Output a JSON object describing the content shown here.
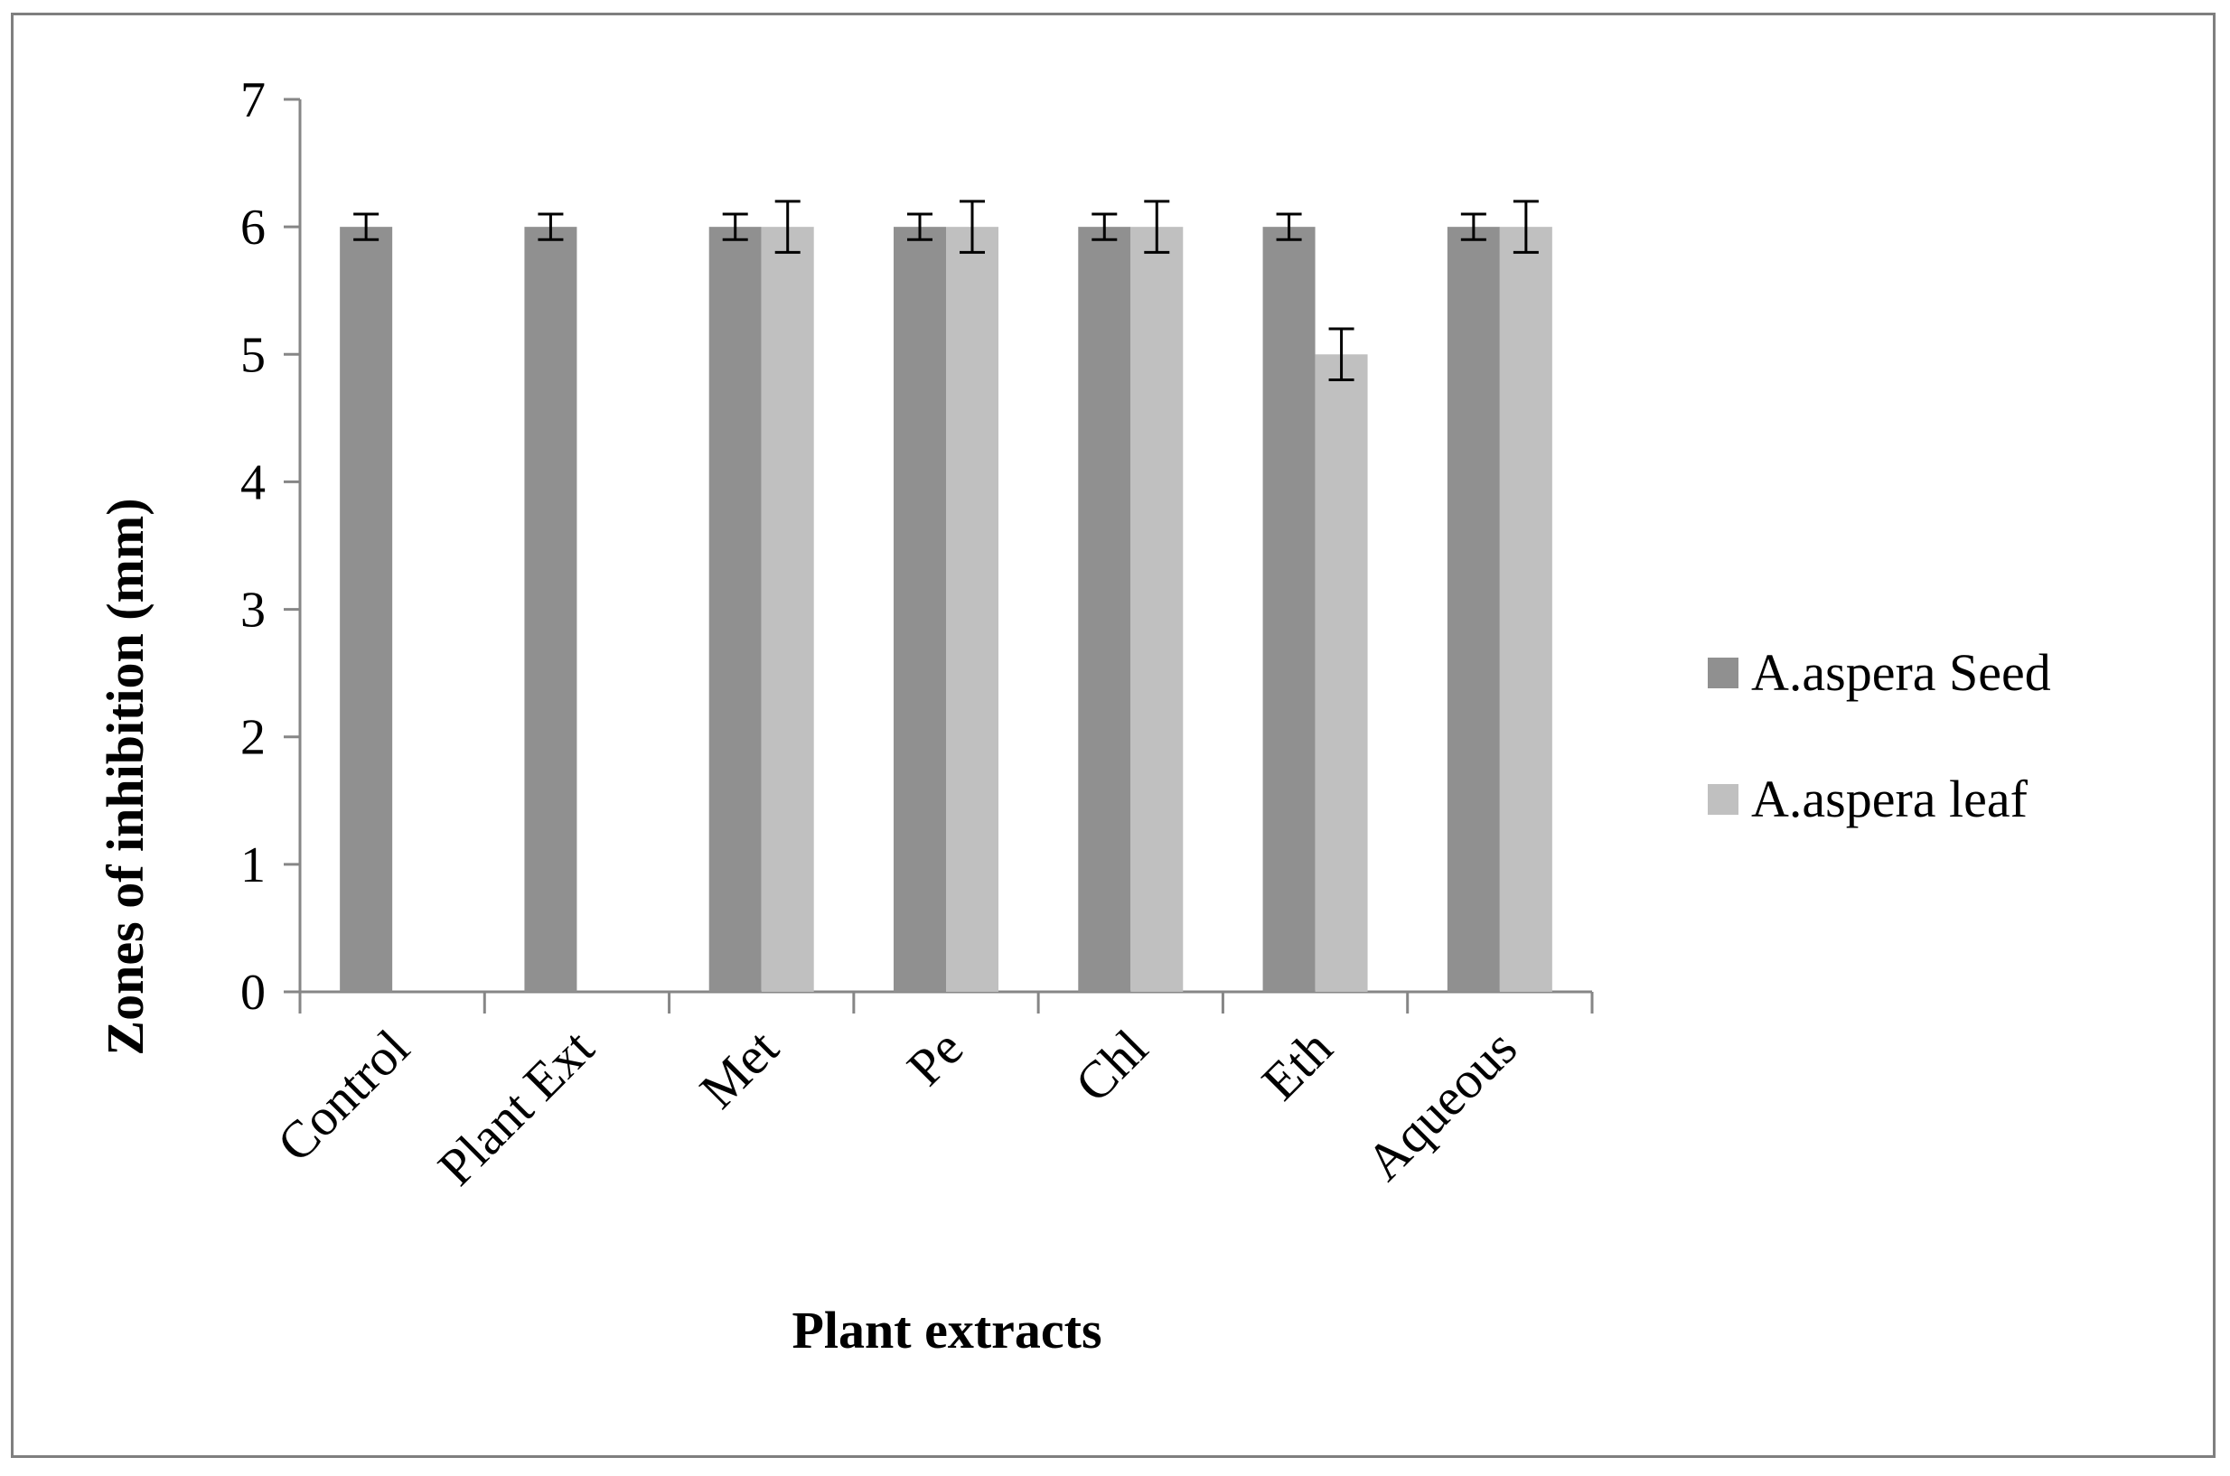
{
  "chart_data": {
    "type": "bar",
    "title": "",
    "xlabel": "Plant extracts",
    "ylabel": "Zones of inhibition (mm)",
    "ylim": [
      0,
      7
    ],
    "yticks": [
      "0",
      "1",
      "2",
      "3",
      "4",
      "5",
      "6",
      "7"
    ],
    "grid": false,
    "legend_position": "right",
    "categories": [
      "Control",
      "Plant Ext",
      "Met",
      "Pe",
      "Chl",
      "Eth",
      "Aqueous"
    ],
    "series": [
      {
        "name": "A.aspera Seed",
        "color": "#909090",
        "values": [
          6,
          6,
          6,
          6,
          6,
          6,
          6
        ],
        "errors": [
          0.1,
          0.1,
          0.1,
          0.1,
          0.1,
          0.1,
          0.1
        ]
      },
      {
        "name": "A.aspera leaf",
        "color": "#c0c0c0",
        "values": [
          null,
          null,
          6,
          6,
          6,
          5,
          6
        ],
        "errors": [
          null,
          null,
          0.2,
          0.2,
          0.2,
          0.2,
          0.2
        ]
      }
    ]
  }
}
